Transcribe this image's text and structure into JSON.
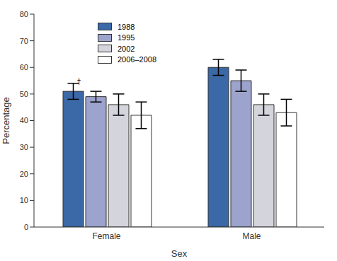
{
  "chart_data": {
    "type": "bar",
    "x_label": "Sex",
    "y_label": "Percentage",
    "categories": [
      "Female",
      "Male"
    ],
    "series": [
      {
        "name": "1988",
        "color": "#3b68a6",
        "values": [
          51,
          60
        ],
        "error": [
          3,
          3
        ]
      },
      {
        "name": "1995",
        "color": "#9ca3cc",
        "values": [
          49,
          55
        ],
        "error": [
          2,
          4
        ]
      },
      {
        "name": "2002",
        "color": "#d4d4dc",
        "values": [
          46,
          46
        ],
        "error": [
          4,
          4
        ]
      },
      {
        "name": "2006–2008",
        "color": "#ffffff",
        "values": [
          42,
          43
        ],
        "error": [
          5,
          5
        ]
      }
    ],
    "annotations": [
      {
        "text": "†",
        "category": "Female",
        "series": "1988"
      }
    ],
    "ylim": [
      0,
      80
    ],
    "yticks": [
      0,
      10,
      20,
      30,
      40,
      50,
      60,
      70,
      80
    ],
    "grid": false,
    "legend": "upper left"
  }
}
